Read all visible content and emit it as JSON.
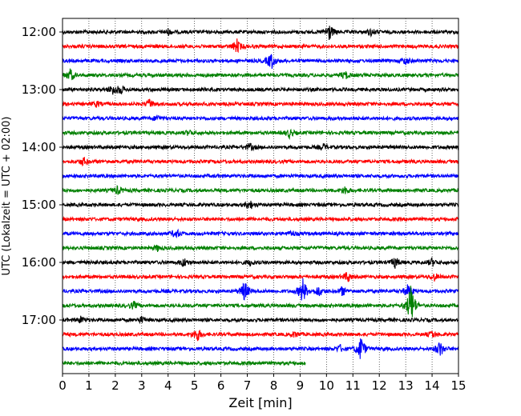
{
  "chart_data": {
    "type": "line",
    "title": "",
    "xlabel": "Zeit  [min]",
    "ylabel": "UTC (Lokalzeit = UTC + 02:00)",
    "xlim": [
      0,
      15
    ],
    "x_ticks": [
      0,
      1,
      2,
      3,
      4,
      5,
      6,
      7,
      8,
      9,
      10,
      11,
      12,
      13,
      14,
      15
    ],
    "y_tick_labels": [
      "12:00",
      "13:00",
      "14:00",
      "15:00",
      "16:00",
      "17:00"
    ],
    "grid": "vertical dotted lines at each minute",
    "trace_interval_min": 15,
    "colors": [
      "#000000",
      "#ff0000",
      "#0000ff",
      "#008000"
    ],
    "traces": [
      {
        "start": "12:00",
        "color": "#000000",
        "end_min": 15,
        "events": [
          [
            10.1,
            1.0
          ],
          [
            4.0,
            0.3
          ],
          [
            11.7,
            0.35
          ]
        ]
      },
      {
        "start": "12:15",
        "color": "#ff0000",
        "end_min": 15,
        "events": [
          [
            6.6,
            0.8
          ]
        ]
      },
      {
        "start": "12:30",
        "color": "#0000ff",
        "end_min": 15,
        "events": [
          [
            7.9,
            1.0
          ],
          [
            13.0,
            0.4
          ]
        ]
      },
      {
        "start": "12:45",
        "color": "#008000",
        "end_min": 15,
        "events": [
          [
            0.3,
            0.7
          ],
          [
            10.7,
            0.45
          ]
        ]
      },
      {
        "start": "13:00",
        "color": "#000000",
        "end_min": 15,
        "events": [
          [
            1.9,
            0.55
          ],
          [
            2.2,
            0.45
          ]
        ]
      },
      {
        "start": "13:15",
        "color": "#ff0000",
        "end_min": 15,
        "events": [
          [
            3.3,
            0.5
          ],
          [
            1.3,
            0.3
          ]
        ]
      },
      {
        "start": "13:30",
        "color": "#0000ff",
        "end_min": 15,
        "events": [
          [
            3.6,
            0.3
          ]
        ]
      },
      {
        "start": "13:45",
        "color": "#008000",
        "end_min": 15,
        "events": [
          [
            8.6,
            0.5
          ],
          [
            4.8,
            0.3
          ]
        ]
      },
      {
        "start": "14:00",
        "color": "#000000",
        "end_min": 15,
        "events": [
          [
            7.1,
            0.4
          ],
          [
            9.9,
            0.3
          ]
        ]
      },
      {
        "start": "14:15",
        "color": "#ff0000",
        "end_min": 15,
        "events": [
          [
            0.8,
            0.45
          ]
        ]
      },
      {
        "start": "14:30",
        "color": "#0000ff",
        "end_min": 15,
        "events": []
      },
      {
        "start": "14:45",
        "color": "#008000",
        "end_min": 15,
        "events": [
          [
            2.1,
            0.45
          ],
          [
            10.7,
            0.45
          ]
        ]
      },
      {
        "start": "15:00",
        "color": "#000000",
        "end_min": 15,
        "events": [
          [
            7.1,
            0.5
          ]
        ]
      },
      {
        "start": "15:15",
        "color": "#ff0000",
        "end_min": 15,
        "events": []
      },
      {
        "start": "15:30",
        "color": "#0000ff",
        "end_min": 15,
        "events": [
          [
            4.3,
            0.5
          ],
          [
            8.7,
            0.3
          ]
        ]
      },
      {
        "start": "15:45",
        "color": "#008000",
        "end_min": 15,
        "events": [
          [
            3.6,
            0.3
          ]
        ]
      },
      {
        "start": "16:00",
        "color": "#000000",
        "end_min": 15,
        "events": [
          [
            4.6,
            0.5
          ],
          [
            12.6,
            0.6
          ],
          [
            14.0,
            0.4
          ],
          [
            7.1,
            0.3
          ]
        ]
      },
      {
        "start": "16:15",
        "color": "#ff0000",
        "end_min": 15,
        "events": [
          [
            10.8,
            0.6
          ],
          [
            14.1,
            0.4
          ]
        ]
      },
      {
        "start": "16:30",
        "color": "#0000ff",
        "end_min": 15,
        "events": [
          [
            6.9,
            1.2
          ],
          [
            9.1,
            1.5
          ],
          [
            9.7,
            0.6
          ],
          [
            10.6,
            0.5
          ],
          [
            13.1,
            0.8
          ]
        ]
      },
      {
        "start": "16:45",
        "color": "#008000",
        "end_min": 15,
        "events": [
          [
            13.2,
            2.5
          ],
          [
            2.7,
            0.4
          ]
        ]
      },
      {
        "start": "17:00",
        "color": "#000000",
        "end_min": 15,
        "events": [
          [
            0.7,
            0.35
          ],
          [
            3.0,
            0.35
          ]
        ]
      },
      {
        "start": "17:15",
        "color": "#ff0000",
        "end_min": 15,
        "events": [
          [
            5.1,
            0.8
          ],
          [
            8.8,
            0.3
          ],
          [
            14.0,
            0.35
          ]
        ]
      },
      {
        "start": "17:30",
        "color": "#0000ff",
        "end_min": 15,
        "events": [
          [
            11.3,
            1.5
          ],
          [
            14.3,
            0.9
          ],
          [
            10.5,
            0.4
          ]
        ]
      },
      {
        "start": "17:45",
        "color": "#008000",
        "end_min": 9.2,
        "events": []
      }
    ]
  }
}
